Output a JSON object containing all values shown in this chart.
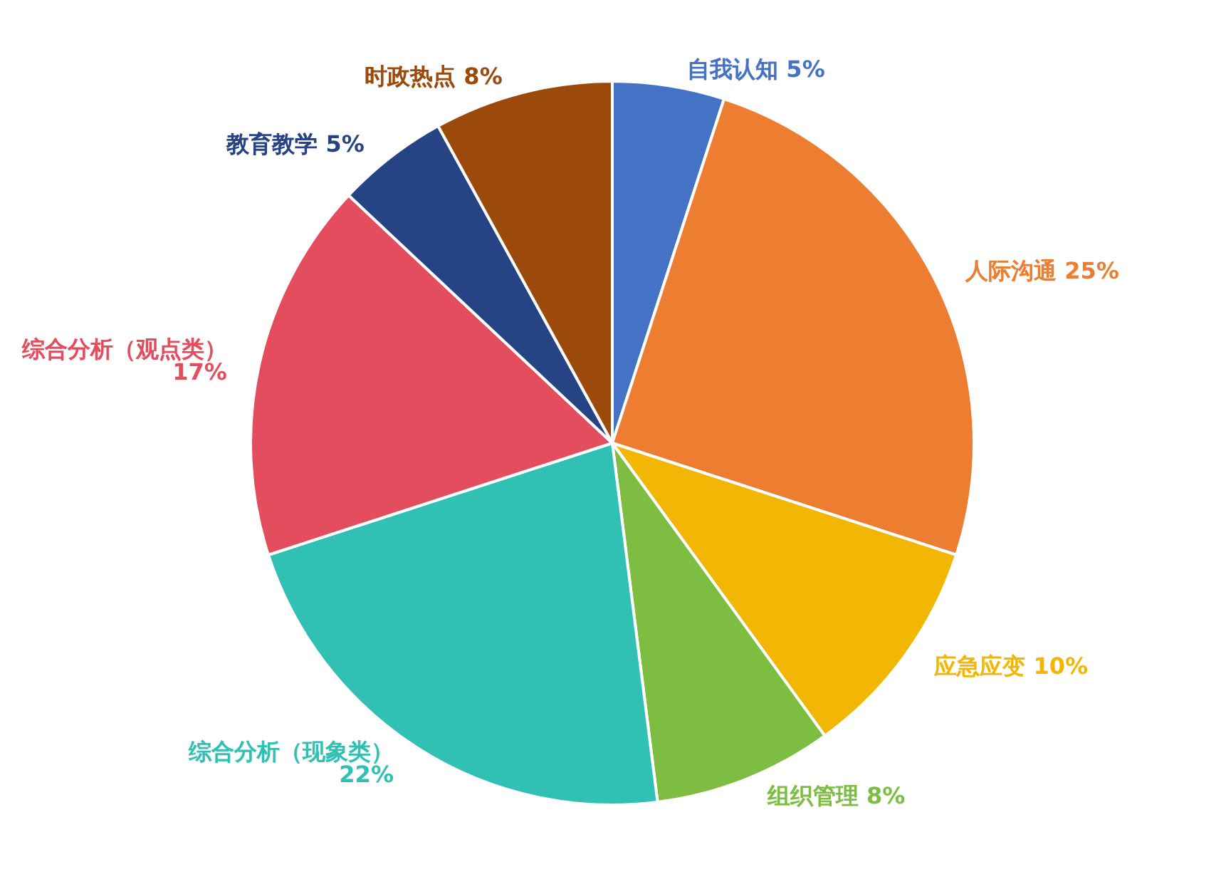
{
  "chart_data": {
    "type": "pie",
    "categories": [
      "自我认知",
      "人际沟通",
      "应急应变",
      "组织管理",
      "综合分析（现象类）",
      "综合分析（观点类）",
      "教育教学",
      "时政热点"
    ],
    "values": [
      5,
      25,
      10,
      8,
      22,
      17,
      5,
      8
    ],
    "value_labels": [
      "5%",
      "25%",
      "10%",
      "8%",
      "22%",
      "17%",
      "5%",
      "8%"
    ],
    "colors": [
      "#4472c4",
      "#ed7d31",
      "#f2b705",
      "#7cbd42",
      "#30c0b4",
      "#e34d5e",
      "#264383",
      "#9c4a0b"
    ],
    "legend": false
  }
}
